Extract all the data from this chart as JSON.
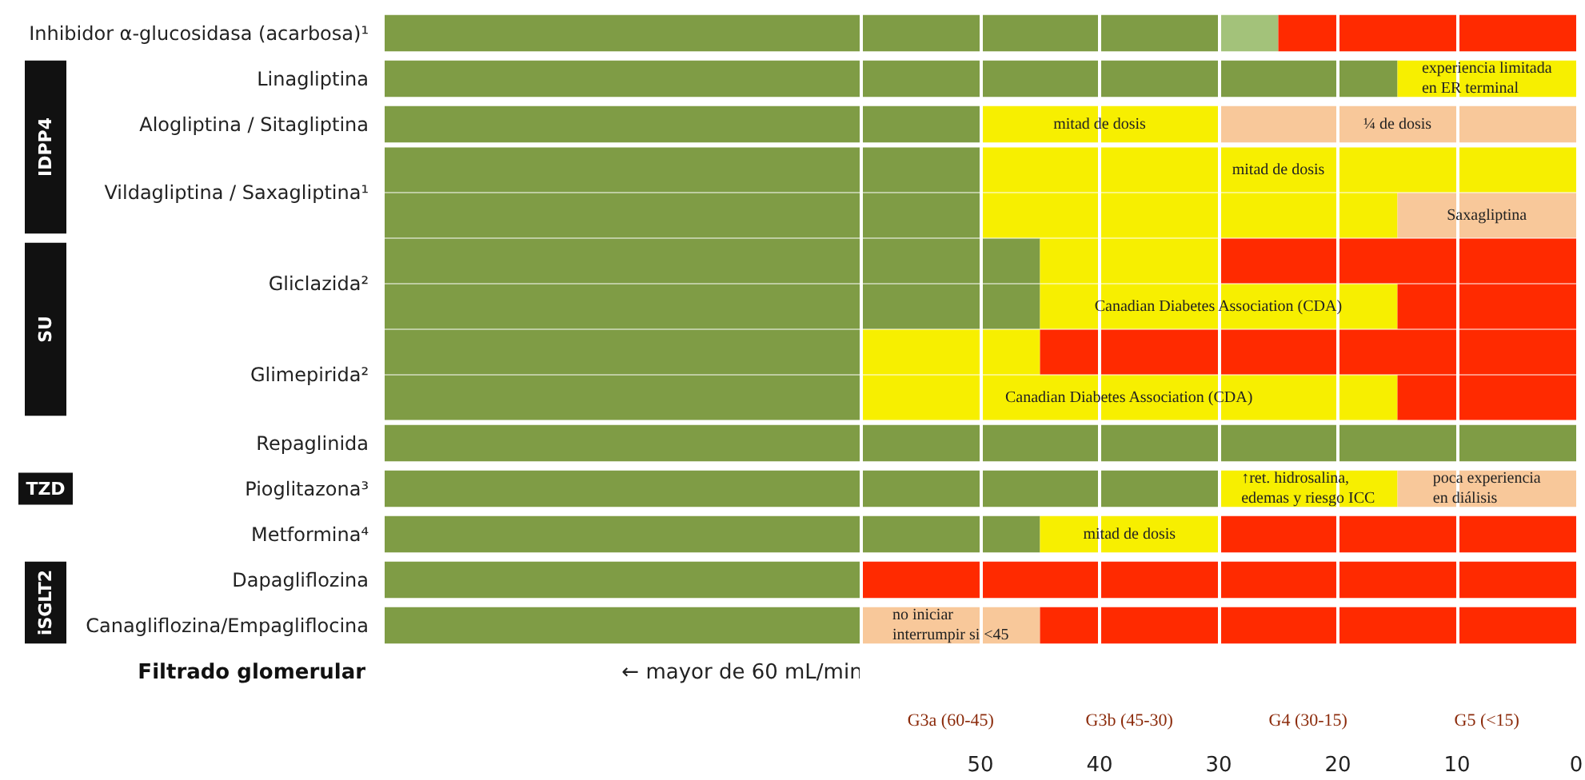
{
  "chart_data": {
    "type": "bar",
    "orientation": "horizontal",
    "xlabel": "Filtrado glomerular",
    "categories": [
      "Inhibidor α-glucosidasa (acarbosa)¹",
      "Linagliptina",
      "Alogliptina / Sitagliptina",
      "Vildagliptina / Saxagliptina¹",
      null,
      "Gliclazida²",
      null,
      "Glimepirida²",
      null,
      "Repaglinida",
      "Pioglitazona³",
      "Metformina⁴",
      "Dapagliflozina",
      "Canagliflozina/Empagliflocina"
    ],
    "series": [
      {
        "color": "#7f9c45",
        "base": [
          30,
          15,
          50,
          50,
          50,
          45,
          45,
          60,
          60,
          0,
          30,
          45,
          60,
          60
        ],
        "values": [
          70,
          85,
          50,
          50,
          50,
          55,
          55,
          40,
          40,
          100,
          70,
          55,
          40,
          40
        ]
      },
      {
        "color": "#a3c27a",
        "base": [
          25,
          null,
          null,
          null,
          null,
          null,
          null,
          null,
          null,
          null,
          null,
          null,
          null,
          null
        ],
        "values": [
          5,
          null,
          null,
          null,
          null,
          null,
          null,
          null,
          null,
          null,
          null,
          null,
          null,
          null
        ]
      },
      {
        "color": "#f7ef00",
        "base": [
          null,
          0,
          30,
          0,
          15,
          30,
          15,
          45,
          15,
          null,
          15,
          30,
          null,
          null
        ],
        "values": [
          null,
          15,
          20,
          50,
          35,
          15,
          30,
          15,
          45,
          null,
          15,
          15,
          null,
          null
        ],
        "value_labels": [
          null,
          "experiencia limitada\nen ER terminal",
          "mitad de dosis",
          "mitad de dosis",
          null,
          null,
          "Canadian Diabetes Association (CDA)",
          null,
          "Canadian Diabetes Association (CDA)",
          null,
          "↑ret. hidrosalina,\nedemas y riesgo ICC",
          "mitad de dosis",
          null,
          null
        ]
      },
      {
        "color": "#f8c89a",
        "base": [
          null,
          null,
          0,
          null,
          0,
          null,
          null,
          null,
          null,
          null,
          0,
          null,
          null,
          45
        ],
        "values": [
          null,
          null,
          30,
          null,
          15,
          null,
          null,
          null,
          null,
          null,
          15,
          null,
          null,
          15
        ],
        "value_labels": [
          null,
          null,
          "¼ de dosis",
          null,
          "Saxagliptina",
          null,
          null,
          null,
          null,
          null,
          "poca experiencia\nen diálisis",
          null,
          null,
          "no iniciar\ninterrumpir si <45"
        ]
      },
      {
        "color": "#ff2a00",
        "base": [
          0,
          null,
          null,
          null,
          null,
          0,
          0,
          0,
          0,
          null,
          null,
          0,
          0,
          0
        ],
        "values": [
          25,
          null,
          null,
          null,
          null,
          30,
          15,
          45,
          15,
          null,
          null,
          30,
          60,
          45
        ]
      }
    ],
    "xlim": [
      100,
      0
    ],
    "xticks": [
      {
        "value": 60,
        "label": null
      },
      50,
      40,
      30,
      20,
      10,
      0
    ],
    "grid": "x",
    "annotations": [
      "IDPP4",
      "SU",
      "TZD",
      "iSGLT2",
      "← mayor de 60 mL/min",
      "G3a (60-45)",
      "G3b (45-30)",
      "G4 (30-15)",
      "G5 (<15)"
    ]
  }
}
